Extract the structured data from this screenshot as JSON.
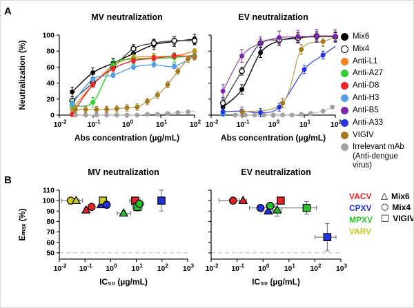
{
  "figure": {
    "panel_a_label": "A",
    "panel_b_label": "B"
  },
  "legend_a": {
    "items": [
      {
        "label": "Mix6",
        "color": "#000000",
        "open": false
      },
      {
        "label": "Mix4",
        "color": "#ffffff",
        "open": true
      },
      {
        "label": "Anti-L1",
        "color": "#F5821F",
        "open": false
      },
      {
        "label": "Anti-A27",
        "color": "#2ED12E",
        "open": false
      },
      {
        "label": "Anti-D8",
        "color": "#EB2428",
        "open": false
      },
      {
        "label": "Anti-H3",
        "color": "#559DE4",
        "open": false
      },
      {
        "label": "Anti-B5",
        "color": "#7D26A8",
        "open": false
      },
      {
        "label": "Anti-A33",
        "color": "#2233DD",
        "open": false
      },
      {
        "label": "VIGIV",
        "color": "#A5791E",
        "open": false
      },
      {
        "label": "Irrelevant mAb\n(Anti-dengue virus)",
        "color": "#A3A3A3",
        "open": false
      }
    ]
  },
  "legend_b": {
    "viruses": [
      {
        "label": "VACV",
        "color": "#E62428"
      },
      {
        "label": "CPXV",
        "color": "#2233DD"
      },
      {
        "label": "MPXV",
        "color": "#28C128"
      },
      {
        "label": "VARV",
        "color": "#C9C920"
      }
    ],
    "groups": [
      {
        "shape": "triangle",
        "glyph": "△",
        "label": "Mix6"
      },
      {
        "shape": "circle",
        "glyph": "○",
        "label": "Mix4"
      },
      {
        "shape": "square",
        "glyph": "□",
        "label": "VIGIV"
      }
    ]
  },
  "chart_data": [
    {
      "name": "mv-dose-response",
      "type": "line",
      "title": "MV neutralization",
      "xlabel": "Abs concentration (µg/mL)",
      "ylabel": "Neutralization (%)",
      "xticks_exp": [
        -2,
        -1,
        0,
        1,
        2
      ],
      "xlim_log": [
        -2,
        2
      ],
      "ylim": [
        0,
        100
      ],
      "yticks": [
        0,
        20,
        40,
        60,
        80,
        100
      ],
      "show_ytick_labels": true,
      "series": [
        {
          "name": "Mix6",
          "color": "#000000",
          "marker": "filled",
          "yerr": 6,
          "x": [
            0.024,
            0.098,
            0.39,
            1.56,
            6.25,
            25,
            100
          ],
          "y": [
            29,
            53,
            65,
            77,
            88,
            92,
            95
          ]
        },
        {
          "name": "Mix4",
          "color": "#000000",
          "line_color": "#4a4a4a",
          "marker": "open",
          "yerr": 5,
          "x": [
            0.024,
            0.098,
            0.39,
            1.56,
            6.25,
            25,
            100
          ],
          "y": [
            18,
            40,
            60,
            83,
            90,
            93,
            93
          ]
        },
        {
          "name": "Anti-L1",
          "color": "#F5821F",
          "marker": "filled",
          "yerr": 3,
          "x": [
            0.024,
            0.098,
            0.39,
            1.56,
            6.25,
            25,
            100
          ],
          "y": [
            8,
            38,
            62,
            72,
            73,
            74,
            80
          ]
        },
        {
          "name": "Anti-A27",
          "color": "#2ED12E",
          "marker": "filled",
          "yerr": 6,
          "x": [
            0.024,
            0.098,
            0.39,
            1.56,
            6.25,
            25,
            100
          ],
          "y": [
            12,
            16,
            63,
            70,
            71,
            72,
            75
          ]
        },
        {
          "name": "Anti-D8",
          "color": "#EB2428",
          "marker": "filled",
          "yerr": 3,
          "x": [
            0.024,
            0.098,
            0.39,
            1.56,
            6.25,
            25,
            100
          ],
          "y": [
            1,
            38,
            58,
            68,
            71,
            74,
            73
          ]
        },
        {
          "name": "Anti-H3",
          "color": "#559DE4",
          "marker": "filled",
          "yerr": 3,
          "x": [
            0.024,
            0.098,
            0.39,
            1.56,
            6.25,
            25,
            100
          ],
          "y": [
            14,
            45,
            50,
            60,
            63,
            61,
            74
          ]
        },
        {
          "name": "VIGIV",
          "color": "#A5791E",
          "line_color": "#BFA364",
          "marker": "filled",
          "yerr": 4,
          "x": [
            0.03,
            0.06,
            0.125,
            0.25,
            0.5,
            1,
            2,
            4,
            8,
            16,
            32,
            64,
            100
          ],
          "y": [
            7,
            7,
            7,
            7,
            8,
            9,
            10,
            17,
            25,
            38,
            55,
            70,
            73
          ]
        },
        {
          "name": "Irrelevant mAb",
          "color": "#A3A3A3",
          "line_color": "#C9C9C9",
          "marker": "filled",
          "yerr": 1,
          "x": [
            0.03,
            0.06,
            0.125,
            0.25,
            0.5,
            1,
            2,
            4,
            8,
            16,
            32,
            64
          ],
          "y": [
            0,
            0,
            0,
            0,
            0,
            0,
            0,
            1,
            1,
            2,
            3,
            4
          ],
          "curve_extra": [
            [
              100,
              5
            ]
          ]
        }
      ]
    },
    {
      "name": "ev-dose-response",
      "type": "line",
      "title": "EV neutralization",
      "xlabel": "Abs concentration (µg/mL)",
      "ylabel": "",
      "xticks_exp": [
        -2,
        -1,
        0,
        1,
        2
      ],
      "xlim_log": [
        -2,
        2
      ],
      "ylim": [
        0,
        100
      ],
      "yticks": [
        0,
        20,
        40,
        60,
        80,
        100
      ],
      "show_ytick_labels": false,
      "series": [
        {
          "name": "Mix6",
          "color": "#000000",
          "marker": "filled",
          "yerr": 6,
          "x": [
            0.024,
            0.098,
            0.39,
            1.56,
            6.25,
            25,
            100
          ],
          "y": [
            10,
            32,
            78,
            93,
            97,
            98,
            98
          ]
        },
        {
          "name": "Mix4",
          "color": "#000000",
          "line_color": "#4a4a4a",
          "marker": "open",
          "yerr": 5,
          "x": [
            0.024,
            0.098,
            0.39,
            1.56,
            6.25,
            25,
            100
          ],
          "y": [
            15,
            55,
            90,
            94,
            96,
            99,
            98
          ]
        },
        {
          "name": "Anti-H3",
          "color": "#559DE4",
          "marker": "filled",
          "yerr": 0,
          "x": [
            0.024
          ],
          "y": [
            1
          ]
        },
        {
          "name": "Anti-B5",
          "color": "#7D26A8",
          "line_color": "#9556B8",
          "marker": "filled",
          "yerr": 8,
          "x": [
            0.024,
            0.098,
            0.39,
            1.56,
            6.25,
            25,
            100
          ],
          "y": [
            30,
            74,
            90,
            97,
            98,
            99,
            99
          ]
        },
        {
          "name": "Anti-A33",
          "color": "#2233DD",
          "line_color": "#4353E0",
          "marker": "filled",
          "yerr": 5,
          "x": [
            0.024,
            0.098,
            0.39,
            1.56,
            10,
            40
          ],
          "y": [
            4,
            5,
            3,
            10,
            57,
            75
          ],
          "curve_extra": [
            [
              100,
              86
            ]
          ]
        },
        {
          "name": "VIGIV",
          "color": "#A5791E",
          "line_color": "#BFA364",
          "marker": "filled",
          "yerr": 6,
          "x": [
            0.1,
            2,
            8,
            40
          ],
          "y": [
            4,
            15,
            82,
            92
          ],
          "curve_extra": [
            [
              100,
              97
            ]
          ]
        },
        {
          "name": "Irrelevant mAb",
          "color": "#A3A3A3",
          "line_color": "#C9C9C9",
          "marker": "filled",
          "yerr": 1,
          "x": [
            0.06,
            0.125,
            0.25,
            0.5,
            1,
            2,
            4,
            8,
            16,
            40,
            80
          ],
          "y": [
            0,
            0,
            0,
            0,
            0,
            0,
            0,
            1,
            2,
            5,
            10
          ]
        }
      ]
    },
    {
      "name": "mv-potency-scatter",
      "type": "scatter",
      "title": "MV neutralization",
      "xlabel": "IC₅₀ (µg/mL)",
      "ylabel": "Eₘₐₓ (%)",
      "xticks_exp": [
        -2,
        -1,
        0,
        1,
        2,
        3
      ],
      "xlim_log": [
        -2,
        3
      ],
      "ylim": [
        44,
        110
      ],
      "yticks": [
        50,
        60,
        70,
        80,
        90,
        100,
        110
      ],
      "show_ytick_labels": true,
      "dash_y": 50,
      "points": [
        {
          "virus": "VARV",
          "group": "Mix4",
          "x": 0.028,
          "y": 100,
          "xmin": 0.012,
          "xmax": 0.06
        },
        {
          "virus": "VARV",
          "group": "Mix6",
          "x": 0.045,
          "y": 100,
          "xmin": 0.025,
          "xmax": 0.08
        },
        {
          "virus": "VACV",
          "group": "Mix6",
          "x": 0.11,
          "y": 91,
          "yerr": 2
        },
        {
          "virus": "VACV",
          "group": "Mix4",
          "x": 0.18,
          "y": 94,
          "yerr": 1.5
        },
        {
          "virus": "CPXV",
          "group": "Mix6",
          "x": 0.42,
          "y": 96
        },
        {
          "virus": "VARV",
          "group": "VIGIV",
          "x": 0.5,
          "y": 100
        },
        {
          "virus": "CPXV",
          "group": "Mix4",
          "x": 0.7,
          "y": 96
        },
        {
          "virus": "MPXV",
          "group": "Mix6",
          "x": 3.2,
          "y": 88,
          "xmin": 1.8,
          "xmax": 6,
          "yerr": 2
        },
        {
          "virus": "VACV",
          "group": "VIGIV",
          "x": 9,
          "y": 100,
          "xmin": 5.5,
          "xmax": 14,
          "yerr": 2
        },
        {
          "virus": "MPXV",
          "group": "VIGIV",
          "x": 11,
          "y": 94,
          "xmin": 7,
          "xmax": 17,
          "yerr": 4
        },
        {
          "virus": "MPXV",
          "group": "Mix4",
          "x": 13,
          "y": 97,
          "xmin": 9,
          "xmax": 19,
          "yerr": 3
        },
        {
          "virus": "CPXV",
          "group": "VIGIV",
          "x": 95,
          "y": 100,
          "yerr": 10
        }
      ]
    },
    {
      "name": "ev-potency-scatter",
      "type": "scatter",
      "title": "EV neutralization",
      "xlabel": "IC₅₀ (µg/mL)",
      "ylabel": "",
      "xticks_exp": [
        -2,
        -1,
        0,
        1,
        2,
        3
      ],
      "xlim_log": [
        -2,
        3
      ],
      "ylim": [
        44,
        110
      ],
      "yticks": [
        50,
        60,
        70,
        80,
        90,
        100,
        110
      ],
      "show_ytick_labels": false,
      "dash_y": 50,
      "points": [
        {
          "virus": "VACV",
          "group": "Mix4",
          "x": 0.07,
          "y": 100,
          "xmin": 0.02,
          "xmax": 0.12
        },
        {
          "virus": "VACV",
          "group": "Mix6",
          "x": 0.17,
          "y": 100,
          "xmin": 0.12,
          "xmax": 0.23
        },
        {
          "virus": "CPXV",
          "group": "Mix4",
          "x": 0.8,
          "y": 93,
          "xmin": 0.3,
          "xmax": 2.2
        },
        {
          "virus": "CPXV",
          "group": "Mix6",
          "x": 1.6,
          "y": 90,
          "xmin": 0.9,
          "xmax": 2.9,
          "yerr": 3
        },
        {
          "virus": "MPXV",
          "group": "Mix4",
          "x": 1.9,
          "y": 95,
          "xmin": 1.3,
          "xmax": 2.9
        },
        {
          "virus": "MPXV",
          "group": "Mix6",
          "x": 3.5,
          "y": 91,
          "xmin": 2.4,
          "xmax": 5.2,
          "yerr": 6
        },
        {
          "virus": "VACV",
          "group": "VIGIV",
          "x": 4.8,
          "y": 100,
          "xmin": 3.6,
          "xmax": 6.5
        },
        {
          "virus": "MPXV",
          "group": "VIGIV",
          "x": 48,
          "y": 93,
          "xmin": 1.5,
          "xmax": 115,
          "yerr": 6
        },
        {
          "virus": "CPXV",
          "group": "VIGIV",
          "x": 300,
          "y": 65,
          "xmin": 100,
          "xmax": 650,
          "yerr": 13
        }
      ]
    }
  ]
}
